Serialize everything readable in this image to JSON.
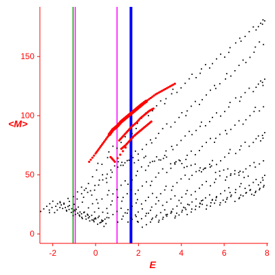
{
  "chart_data": {
    "type": "scatter",
    "xlabel": "E",
    "ylabel": "<M>",
    "xlim": [
      -2.6,
      8.05
    ],
    "ylim": [
      -8,
      192
    ],
    "xticks": [
      -2,
      0,
      2,
      4,
      6,
      8
    ],
    "yticks": [
      0,
      50,
      100,
      150
    ],
    "grid": false,
    "colors": {
      "axis": "#ff0000",
      "background_points": "#000000",
      "highlight_points": "#ff0000",
      "line_green": "#00a000",
      "line_magenta": "#ff00ff",
      "line_blue": "#0000ff"
    },
    "vertical_lines": [
      {
        "x": -1.05,
        "color": "#00a000",
        "weight": "thin"
      },
      {
        "x": -0.95,
        "color": "#ff00ff",
        "weight": "thin"
      },
      {
        "x": 1.0,
        "color": "#ff00ff",
        "weight": "thin"
      },
      {
        "x": 1.65,
        "color": "#0000ff",
        "weight": "thick"
      }
    ],
    "highlight_series": [
      {
        "x": [
          -0.3,
          0.0,
          0.2,
          0.4,
          0.6,
          0.8,
          1.0,
          1.2,
          1.4,
          1.6,
          1.8,
          2.0,
          2.2,
          2.5,
          2.8,
          3.1,
          3.4,
          3.7
        ],
        "y": [
          61,
          68,
          73,
          78,
          83,
          88,
          91,
          95,
          98,
          101,
          104,
          107,
          110,
          114,
          118,
          121,
          124,
          127
        ]
      },
      {
        "x": [
          1.1,
          1.3,
          1.5,
          1.7,
          1.9,
          2.1,
          2.3,
          2.5,
          2.7
        ],
        "y": [
          79,
          83,
          87,
          91,
          94,
          98,
          101,
          104,
          106
        ]
      },
      {
        "x": [
          1.2,
          1.4,
          1.6,
          1.8,
          2.0,
          2.2,
          2.4,
          2.6
        ],
        "y": [
          72,
          75,
          79,
          83,
          86,
          89,
          92,
          95
        ]
      },
      {
        "x": [
          0.7,
          0.9,
          1.4
        ],
        "y": [
          65,
          61,
          73
        ]
      }
    ],
    "background_series": [
      {
        "x": [
          -2.5,
          -1.8,
          -1.2,
          -0.8,
          -0.3,
          0.2,
          0.6
        ],
        "y": [
          22,
          26,
          22,
          17,
          14,
          12,
          11
        ]
      },
      {
        "x": [
          -2.2,
          -1.6,
          -1.0,
          -0.5,
          0.0,
          0.5
        ],
        "y": [
          19,
          23,
          18,
          15,
          11,
          9
        ]
      },
      {
        "x": [
          -1.5,
          -0.5,
          0.5,
          1.5,
          2.5,
          3.5,
          4.5,
          5.5,
          6.5,
          7.5,
          8.0
        ],
        "y": [
          25,
          40,
          65,
          85,
          102,
          118,
          132,
          145,
          160,
          175,
          183
        ]
      },
      {
        "x": [
          -1.0,
          0.0,
          1.0,
          2.0,
          3.0,
          4.0,
          5.0,
          6.0,
          7.0,
          8.0
        ],
        "y": [
          22,
          38,
          55,
          70,
          85,
          100,
          115,
          130,
          148,
          165
        ]
      },
      {
        "x": [
          -0.5,
          0.5,
          1.5,
          2.5,
          3.5,
          4.5,
          5.5,
          6.5,
          7.5,
          8.0
        ],
        "y": [
          20,
          32,
          45,
          58,
          72,
          86,
          98,
          112,
          125,
          132
        ]
      },
      {
        "x": [
          0.0,
          1.0,
          2.0,
          3.0,
          4.0,
          5.0,
          6.0,
          7.0,
          8.0
        ],
        "y": [
          18,
          28,
          38,
          50,
          62,
          74,
          85,
          98,
          110
        ]
      },
      {
        "x": [
          0.5,
          1.5,
          2.5,
          3.5,
          4.5,
          5.5,
          6.5,
          7.5,
          8.0
        ],
        "y": [
          15,
          22,
          30,
          40,
          50,
          60,
          70,
          80,
          85
        ]
      },
      {
        "x": [
          1.0,
          2.0,
          3.0,
          4.0,
          5.0,
          6.0,
          7.0,
          8.0
        ],
        "y": [
          12,
          18,
          25,
          32,
          40,
          48,
          55,
          62
        ]
      },
      {
        "x": [
          1.5,
          2.5,
          3.5,
          4.5,
          5.5,
          6.5,
          7.5,
          8.0
        ],
        "y": [
          10,
          15,
          20,
          26,
          32,
          38,
          44,
          47
        ]
      },
      {
        "x": [
          2.0,
          3.0,
          4.0,
          5.0,
          6.0,
          7.0,
          8.0
        ],
        "y": [
          8,
          12,
          18,
          22,
          28,
          33,
          38
        ]
      },
      {
        "x": [
          3.0,
          4.0,
          5.0,
          6.0,
          7.0,
          8.0
        ],
        "y": [
          14,
          20,
          26,
          30,
          34,
          40
        ]
      },
      {
        "x": [
          -0.8,
          0.3,
          1.2,
          2.2,
          3.3,
          4.3,
          5.3,
          6.3,
          7.3
        ],
        "y": [
          30,
          48,
          60,
          64,
          62,
          58,
          55,
          52,
          50
        ]
      }
    ]
  }
}
